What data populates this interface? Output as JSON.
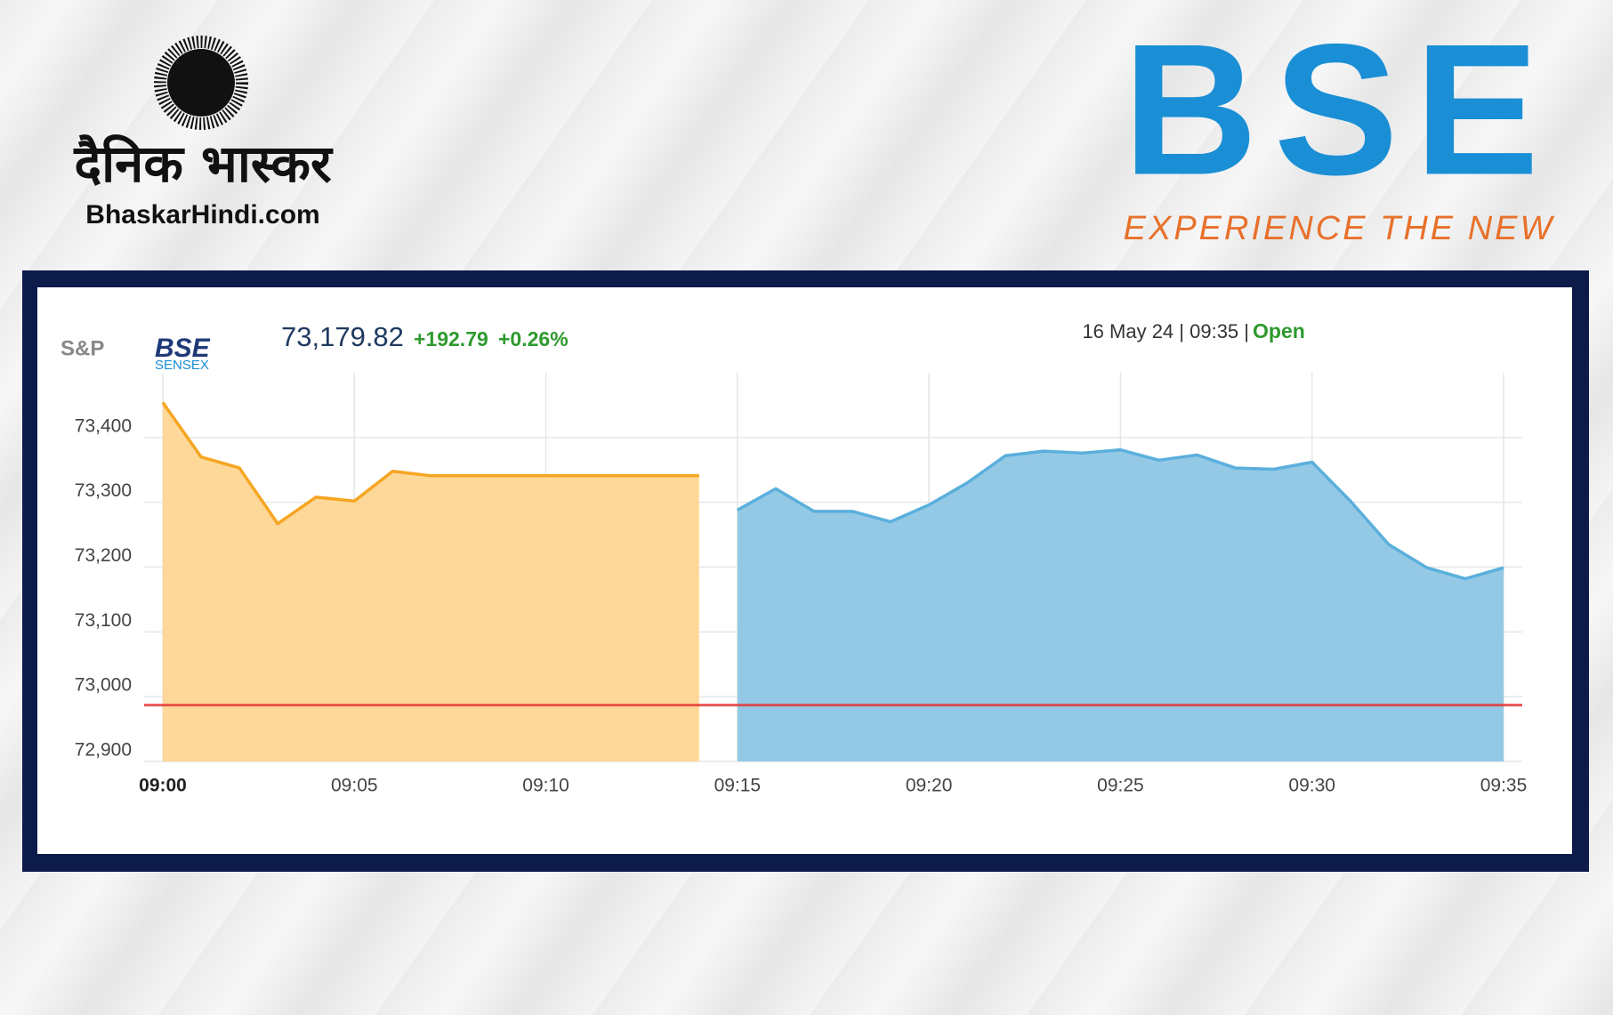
{
  "branding": {
    "publisher_name": "दैनिक भास्कर",
    "publisher_site": "BhaskarHindi.com",
    "exchange_logo": "BSE",
    "exchange_tagline": "EXPERIENCE THE NEW"
  },
  "quote": {
    "provider": "S&P",
    "index_brand": "BSE",
    "index_name": "SENSEX",
    "price": "73,179.82",
    "change": "+192.79",
    "change_pct": "+0.26%",
    "timestamp": "16 May 24 | 09:35 |",
    "status": "Open"
  },
  "chart_data": {
    "type": "area",
    "categories": [
      "09:00",
      null,
      null,
      null,
      null,
      "09:05",
      null,
      null,
      null,
      null,
      "09:10",
      null,
      null,
      null,
      null,
      "09:15",
      null,
      null,
      null,
      null,
      "09:20",
      null,
      null,
      null,
      null,
      "09:25",
      null,
      null,
      null,
      null,
      "09:30",
      null,
      null,
      null,
      null,
      "09:35"
    ],
    "series": [
      {
        "color": "#f5a623",
        "fill": "#fdd898",
        "values": [
          73454,
          73370,
          73353,
          73267,
          73308,
          73302,
          73348,
          73341,
          73341,
          73341,
          73341,
          73341,
          73341,
          73341,
          73341,
          null,
          null,
          null,
          null,
          null,
          null,
          null,
          null,
          null,
          null,
          null,
          null,
          null,
          null,
          null,
          null,
          null,
          null,
          null,
          null,
          null
        ]
      },
      {
        "color": "#5aafdc",
        "fill": "#94c9e6",
        "values": [
          null,
          null,
          null,
          null,
          null,
          null,
          null,
          null,
          null,
          null,
          null,
          null,
          null,
          null,
          null,
          73288,
          73321,
          73286,
          73286,
          73270,
          73296,
          73330,
          73372,
          73379,
          73376,
          73381,
          73365,
          73373,
          73353,
          73351,
          73362,
          73302,
          73235,
          73199,
          73182,
          73199
        ]
      }
    ],
    "previous_close": 72987.03,
    "previous_close_color": "#e53935",
    "ylim": [
      72900,
      73500
    ],
    "yticks": [
      {
        "value": 72900,
        "label": "72,900"
      },
      {
        "value": 73000,
        "label": "73,000"
      },
      {
        "value": 73100,
        "label": "73,100"
      },
      {
        "value": 73200,
        "label": "73,200"
      },
      {
        "value": 73300,
        "label": "73,300"
      },
      {
        "value": 73400,
        "label": "73,400"
      }
    ],
    "grid": true
  }
}
